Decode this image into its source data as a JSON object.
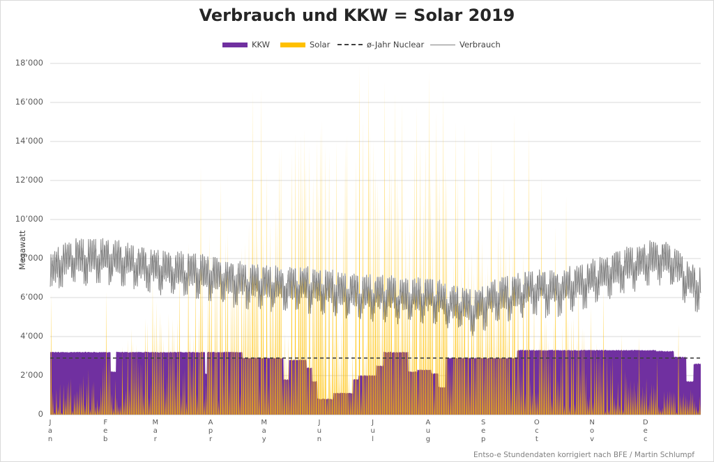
{
  "chart_data": {
    "type": "area",
    "title": "Verbrauch und KKW = Solar 2019",
    "xlabel": "",
    "ylabel": "Megawatt",
    "ylim": [
      0,
      18000
    ],
    "yticks": [
      0,
      2000,
      4000,
      6000,
      8000,
      10000,
      12000,
      14000,
      16000,
      18000
    ],
    "ytick_labels": [
      "0",
      "2’000",
      "4’000",
      "6’000",
      "8’000",
      "10’000",
      "12’000",
      "14’000",
      "16’000",
      "18’000"
    ],
    "xticks": [
      "Jan",
      "Feb",
      "Mar",
      "Apr",
      "May",
      "Jun",
      "Jul",
      "Aug",
      "Sep",
      "Oct",
      "Nov",
      "Dec"
    ],
    "month_start_days": [
      0,
      31,
      59,
      90,
      120,
      151,
      181,
      212,
      243,
      273,
      304,
      334
    ],
    "days_in_year": 365,
    "grid": true,
    "legend_position": "top",
    "resolution": "hourly",
    "series": [
      {
        "name": "KKW",
        "kind": "area",
        "color": "#7030a0",
        "description": "Nuclear generation (MW), daily level",
        "daily_level_segments": [
          {
            "from_day": 0,
            "to_day": 31,
            "value": 3200
          },
          {
            "from_day": 31,
            "to_day": 34,
            "value": 3200
          },
          {
            "from_day": 34,
            "to_day": 37,
            "value": 2200
          },
          {
            "from_day": 37,
            "to_day": 87,
            "value": 3200
          },
          {
            "from_day": 87,
            "to_day": 88,
            "value": 2100
          },
          {
            "from_day": 88,
            "to_day": 108,
            "value": 3200
          },
          {
            "from_day": 108,
            "to_day": 115,
            "value": 2900
          },
          {
            "from_day": 115,
            "to_day": 120,
            "value": 2900
          },
          {
            "from_day": 120,
            "to_day": 131,
            "value": 2900
          },
          {
            "from_day": 131,
            "to_day": 134,
            "value": 1800
          },
          {
            "from_day": 134,
            "to_day": 144,
            "value": 2800
          },
          {
            "from_day": 144,
            "to_day": 147,
            "value": 2400
          },
          {
            "from_day": 147,
            "to_day": 150,
            "value": 1700
          },
          {
            "from_day": 150,
            "to_day": 153,
            "value": 800
          },
          {
            "from_day": 153,
            "to_day": 159,
            "value": 800
          },
          {
            "from_day": 159,
            "to_day": 170,
            "value": 1100
          },
          {
            "from_day": 170,
            "to_day": 173,
            "value": 1800
          },
          {
            "from_day": 173,
            "to_day": 183,
            "value": 2000
          },
          {
            "from_day": 183,
            "to_day": 187,
            "value": 2500
          },
          {
            "from_day": 187,
            "to_day": 201,
            "value": 3200
          },
          {
            "from_day": 201,
            "to_day": 206,
            "value": 2200
          },
          {
            "from_day": 206,
            "to_day": 214,
            "value": 2300
          },
          {
            "from_day": 214,
            "to_day": 218,
            "value": 2100
          },
          {
            "from_day": 218,
            "to_day": 222,
            "value": 1400
          },
          {
            "from_day": 222,
            "to_day": 244,
            "value": 2900
          },
          {
            "from_day": 244,
            "to_day": 262,
            "value": 2900
          },
          {
            "from_day": 262,
            "to_day": 304,
            "value": 3300
          },
          {
            "from_day": 304,
            "to_day": 340,
            "value": 3300
          },
          {
            "from_day": 340,
            "to_day": 350,
            "value": 3250
          },
          {
            "from_day": 350,
            "to_day": 357,
            "value": 2950
          },
          {
            "from_day": 357,
            "to_day": 361,
            "value": 1700
          },
          {
            "from_day": 361,
            "to_day": 365,
            "value": 2600
          }
        ]
      },
      {
        "name": "Solar",
        "kind": "area",
        "color": "#ffc000",
        "description": "Solar generation (MW), daily peak at noon",
        "peak_max": 18000,
        "notable_daily_peaks": [
          {
            "day": 0,
            "value": 6200
          },
          {
            "day": 31,
            "value": 6300
          },
          {
            "day": 45,
            "value": 4400
          },
          {
            "day": 48,
            "value": 3600
          },
          {
            "day": 57,
            "value": 6800
          },
          {
            "day": 77,
            "value": 8800
          },
          {
            "day": 84,
            "value": 12700
          },
          {
            "day": 88,
            "value": 6500
          },
          {
            "day": 95,
            "value": 12000
          },
          {
            "day": 104,
            "value": 7600
          },
          {
            "day": 113,
            "value": 16600
          },
          {
            "day": 118,
            "value": 16700
          },
          {
            "day": 130,
            "value": 2000
          },
          {
            "day": 135,
            "value": 13400
          },
          {
            "day": 139,
            "value": 14000
          },
          {
            "day": 147,
            "value": 12300
          },
          {
            "day": 152,
            "value": 15100
          },
          {
            "day": 160,
            "value": 14000
          },
          {
            "day": 171,
            "value": 13200
          },
          {
            "day": 173,
            "value": 17900
          },
          {
            "day": 178,
            "value": 18000
          },
          {
            "day": 187,
            "value": 17100
          },
          {
            "day": 193,
            "value": 16500
          },
          {
            "day": 197,
            "value": 16000
          },
          {
            "day": 205,
            "value": 15800
          },
          {
            "day": 212,
            "value": 17600
          },
          {
            "day": 216,
            "value": 15500
          },
          {
            "day": 220,
            "value": 16700
          },
          {
            "day": 227,
            "value": 15000
          },
          {
            "day": 232,
            "value": 14900
          },
          {
            "day": 240,
            "value": 14100
          },
          {
            "day": 247,
            "value": 14200
          },
          {
            "day": 254,
            "value": 12100
          },
          {
            "day": 260,
            "value": 15400
          },
          {
            "day": 268,
            "value": 14600
          },
          {
            "day": 275,
            "value": 12200
          },
          {
            "day": 283,
            "value": 9600
          },
          {
            "day": 289,
            "value": 11200
          },
          {
            "day": 296,
            "value": 6700
          },
          {
            "day": 303,
            "value": 5500
          },
          {
            "day": 310,
            "value": 6400
          },
          {
            "day": 320,
            "value": 4100
          },
          {
            "day": 330,
            "value": 4000
          },
          {
            "day": 340,
            "value": 3000
          },
          {
            "day": 352,
            "value": 4600
          }
        ]
      },
      {
        "name": "ø-Jahr Nuclear",
        "kind": "line",
        "style": "dashed",
        "color": "#404040",
        "value": 2900
      },
      {
        "name": "Verbrauch",
        "kind": "line",
        "color": "#7f7f7f",
        "description": "Consumption (MW), weekly average level",
        "weekly_mean": [
          7400,
          8000,
          8200,
          8100,
          8200,
          8100,
          8000,
          7800,
          7700,
          7600,
          7500,
          7500,
          7400,
          7300,
          7100,
          7000,
          6900,
          6900,
          6800,
          6700,
          6800,
          6700,
          6600,
          6500,
          6400,
          6300,
          6300,
          6300,
          6200,
          6100,
          6200,
          6100,
          5800,
          5800,
          5500,
          5900,
          6200,
          6300,
          6500,
          6600,
          6500,
          6600,
          6800,
          6900,
          7300,
          7500,
          7700,
          7900,
          8100,
          8200,
          7900,
          7100,
          6700
        ],
        "daily_swing": 1400
      }
    ],
    "annotation": "Entso-e Stundendaten korrigiert nach BFE / Martin Schlumpf"
  },
  "legend": {
    "kkw": "KKW",
    "solar": "Solar",
    "nuclear": "ø-Jahr Nuclear",
    "verbrauch": "Verbrauch"
  }
}
